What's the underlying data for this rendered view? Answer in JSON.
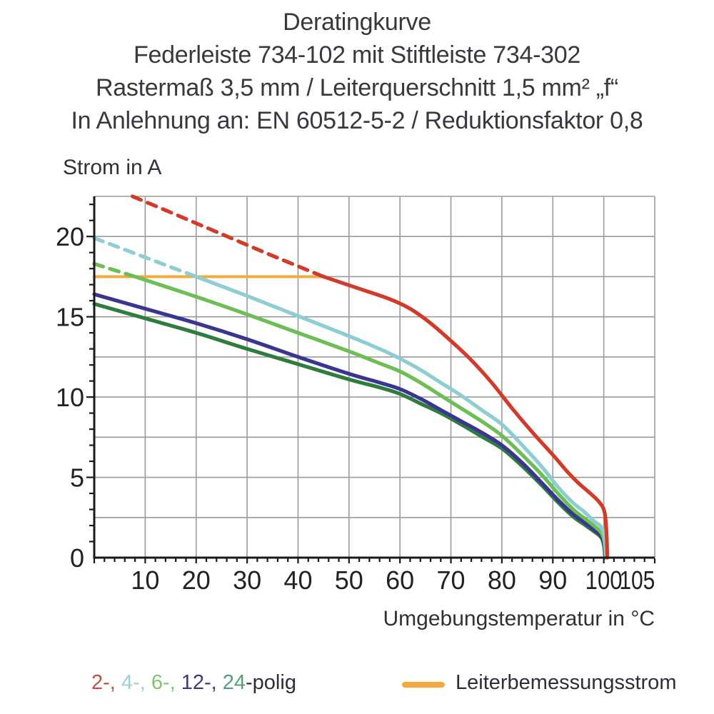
{
  "title": {
    "line1": "Deratingkurve",
    "line2": "Federleiste 734-102 mit Stiftleiste 734-302",
    "line3": "Rastermaß 3,5 mm / Leiterquerschnitt 1,5 mm² „f“",
    "line4": "In Anlehnung an: EN 60512-5-2 / Reduktionsfaktor 0,8"
  },
  "legend": {
    "poles": [
      {
        "series": "2-polig",
        "label": "2-, ",
        "color": "#cd4a42"
      },
      {
        "series": "4-polig",
        "label": "4-, ",
        "color": "#9fd0d4"
      },
      {
        "series": "6-polig",
        "label": "6-, ",
        "color": "#7fc46e"
      },
      {
        "series": "12-polig",
        "label": "12-, ",
        "color": "#3c3b82"
      },
      {
        "series": "24-polig",
        "label": "24",
        "color": "#54a076"
      }
    ],
    "suffix": "-polig",
    "suffix_color": "#2e2e3a",
    "reference_label": "Leiterbemessungsstrom"
  },
  "chart_data": {
    "type": "line",
    "title": "Deratingkurve",
    "xlabel": "Umgebungstemperatur in °C",
    "ylabel": "Strom in A",
    "xlim": [
      0,
      110
    ],
    "ylim": [
      0,
      22.5
    ],
    "xticks": [
      10,
      20,
      30,
      40,
      50,
      60,
      70,
      80,
      90,
      100,
      105
    ],
    "yticks": [
      0,
      5,
      10,
      15,
      20
    ],
    "x_minor_step": 2,
    "y_minor_step": 1,
    "grid": {
      "x_step": 10,
      "y_step": 2.5
    },
    "grid_color": "#9b9b9b",
    "axis_color": "#1a1a1a",
    "tick_label_color": "#222222",
    "reference_line": {
      "label": "Leiterbemessungsstrom",
      "color": "#f4a93c",
      "y": 17.5,
      "x_start": 0,
      "x_end": 45
    },
    "series": [
      {
        "name": "2-polig",
        "color": "#d23b2a",
        "segments": [
          {
            "linestyle": "dashed",
            "points": [
              [
                7.5,
                22.5
              ],
              [
                15,
                21.5
              ],
              [
                25,
                20.15
              ],
              [
                35,
                18.8
              ],
              [
                45,
                17.5
              ]
            ]
          },
          {
            "linestyle": "solid",
            "points": [
              [
                45,
                17.5
              ],
              [
                52,
                16.75
              ],
              [
                58,
                16.1
              ],
              [
                62,
                15.5
              ],
              [
                66,
                14.6
              ],
              [
                70,
                13.5
              ],
              [
                74,
                12.3
              ],
              [
                78,
                10.9
              ],
              [
                82,
                9.3
              ],
              [
                86,
                7.8
              ],
              [
                90,
                6.4
              ],
              [
                93,
                5.3
              ],
              [
                95,
                4.65
              ],
              [
                97,
                4.1
              ],
              [
                99,
                3.5
              ],
              [
                100.1,
                2.9
              ],
              [
                100.5,
                1.8
              ],
              [
                100.7,
                0
              ]
            ]
          }
        ]
      },
      {
        "name": "4-polig",
        "color": "#8ecdd1",
        "segments": [
          {
            "linestyle": "dashed",
            "points": [
              [
                0,
                19.9
              ],
              [
                10,
                18.7
              ],
              [
                20,
                17.5
              ]
            ]
          },
          {
            "linestyle": "solid",
            "points": [
              [
                20,
                17.5
              ],
              [
                30,
                16.3
              ],
              [
                40,
                15.05
              ],
              [
                50,
                13.8
              ],
              [
                56,
                13.0
              ],
              [
                60,
                12.4
              ],
              [
                64,
                11.7
              ],
              [
                68,
                10.9
              ],
              [
                72,
                10.1
              ],
              [
                76,
                9.2
              ],
              [
                80,
                8.3
              ],
              [
                84,
                7.0
              ],
              [
                88,
                5.6
              ],
              [
                91,
                4.4
              ],
              [
                94,
                3.4
              ],
              [
                96,
                2.9
              ],
              [
                98,
                2.3
              ],
              [
                99.5,
                1.9
              ],
              [
                100.2,
                1.2
              ],
              [
                100.5,
                0
              ]
            ]
          }
        ]
      },
      {
        "name": "6-polig",
        "color": "#6dbe55",
        "segments": [
          {
            "linestyle": "dashed",
            "points": [
              [
                0,
                18.3
              ],
              [
                8,
                17.5
              ]
            ]
          },
          {
            "linestyle": "solid",
            "points": [
              [
                8,
                17.5
              ],
              [
                20,
                16.25
              ],
              [
                30,
                15.15
              ],
              [
                40,
                14.0
              ],
              [
                50,
                12.85
              ],
              [
                56,
                12.1
              ],
              [
                60,
                11.6
              ],
              [
                64,
                10.9
              ],
              [
                68,
                10.1
              ],
              [
                72,
                9.3
              ],
              [
                76,
                8.5
              ],
              [
                80,
                7.6
              ],
              [
                84,
                6.4
              ],
              [
                88,
                5.1
              ],
              [
                91,
                4.0
              ],
              [
                94,
                3.0
              ],
              [
                96,
                2.5
              ],
              [
                98,
                2.0
              ],
              [
                99.5,
                1.55
              ],
              [
                100.1,
                1.0
              ],
              [
                100.4,
                0
              ]
            ]
          }
        ]
      },
      {
        "name": "12-polig",
        "color": "#3a3590",
        "segments": [
          {
            "linestyle": "solid",
            "points": [
              [
                0,
                16.4
              ],
              [
                10,
                15.5
              ],
              [
                20,
                14.6
              ],
              [
                30,
                13.6
              ],
              [
                40,
                12.5
              ],
              [
                50,
                11.45
              ],
              [
                56,
                10.9
              ],
              [
                60,
                10.5
              ],
              [
                64,
                9.9
              ],
              [
                68,
                9.2
              ],
              [
                72,
                8.5
              ],
              [
                76,
                7.8
              ],
              [
                80,
                7.0
              ],
              [
                84,
                5.9
              ],
              [
                88,
                4.6
              ],
              [
                91,
                3.6
              ],
              [
                94,
                2.7
              ],
              [
                96,
                2.25
              ],
              [
                98,
                1.75
              ],
              [
                99.5,
                1.35
              ],
              [
                100.1,
                0.8
              ],
              [
                100.3,
                0
              ]
            ]
          }
        ]
      },
      {
        "name": "24-polig",
        "color": "#2e7d3e",
        "segments": [
          {
            "linestyle": "solid",
            "points": [
              [
                0,
                15.8
              ],
              [
                10,
                14.9
              ],
              [
                20,
                14.0
              ],
              [
                30,
                13.0
              ],
              [
                40,
                12.05
              ],
              [
                50,
                11.1
              ],
              [
                56,
                10.6
              ],
              [
                60,
                10.2
              ],
              [
                64,
                9.6
              ],
              [
                68,
                9.0
              ],
              [
                72,
                8.3
              ],
              [
                76,
                7.55
              ],
              [
                80,
                6.8
              ],
              [
                84,
                5.7
              ],
              [
                88,
                4.45
              ],
              [
                91,
                3.45
              ],
              [
                94,
                2.55
              ],
              [
                96,
                2.1
              ],
              [
                98,
                1.65
              ],
              [
                99.5,
                1.25
              ],
              [
                100.05,
                0.7
              ],
              [
                100.25,
                0
              ]
            ]
          }
        ]
      }
    ]
  }
}
